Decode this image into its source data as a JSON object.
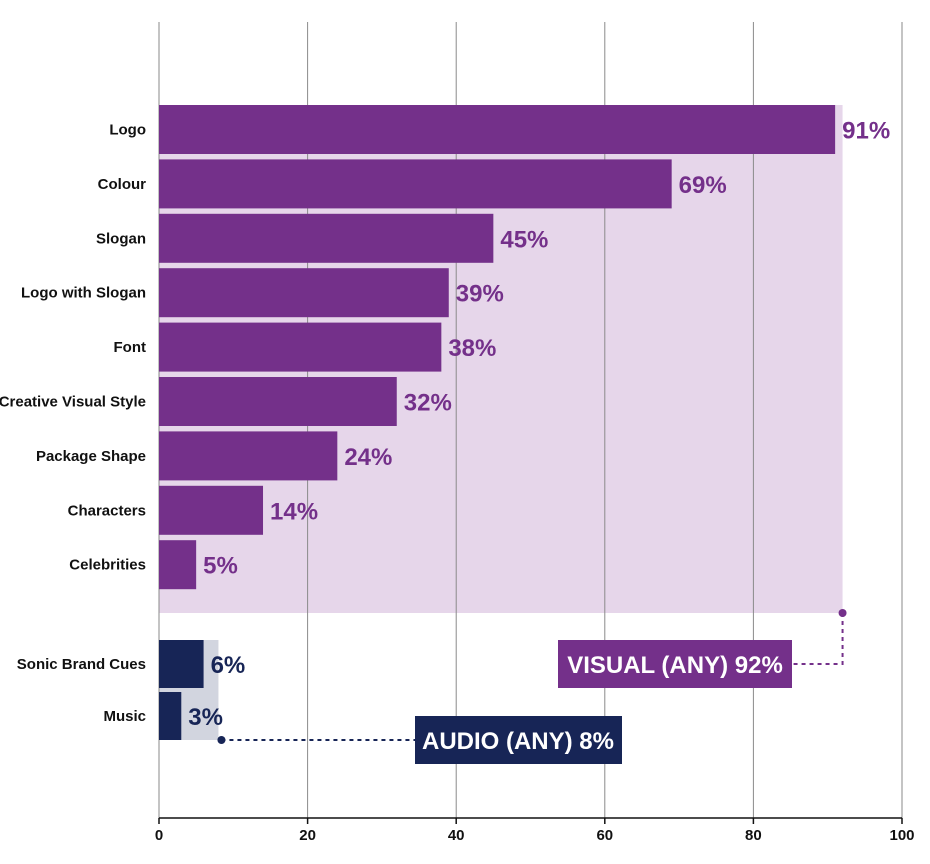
{
  "colors": {
    "visual_bar": "#74308a",
    "visual_band": "#e6d6ea",
    "audio_bar": "#172556",
    "audio_band": "#d2d5df",
    "grid": "#8a8a8a",
    "axis": "#111111"
  },
  "chart_data": {
    "type": "bar",
    "orientation": "horizontal",
    "title": "",
    "xlabel": "",
    "ylabel": "",
    "xlim": [
      0,
      100
    ],
    "xticks": [
      0,
      20,
      40,
      60,
      80,
      100
    ],
    "grid": true,
    "groups": [
      {
        "name": "visual",
        "categories": [
          "Logo",
          "Colour",
          "Slogan",
          "Logo with Slogan",
          "Font",
          "Creative Visual Style",
          "Package Shape",
          "Characters",
          "Celebrities"
        ],
        "values": [
          91,
          69,
          45,
          39,
          38,
          32,
          24,
          14,
          5
        ],
        "value_labels": [
          "91%",
          "69%",
          "45%",
          "39%",
          "38%",
          "32%",
          "24%",
          "14%",
          "5%"
        ],
        "total": 92,
        "total_label": "VISUAL (ANY) 92%"
      },
      {
        "name": "audio",
        "categories": [
          "Sonic Brand Cues",
          "Music"
        ],
        "values": [
          6,
          3
        ],
        "value_labels": [
          "6%",
          "3%"
        ],
        "total": 8,
        "total_label": "AUDIO (ANY) 8%"
      }
    ]
  }
}
